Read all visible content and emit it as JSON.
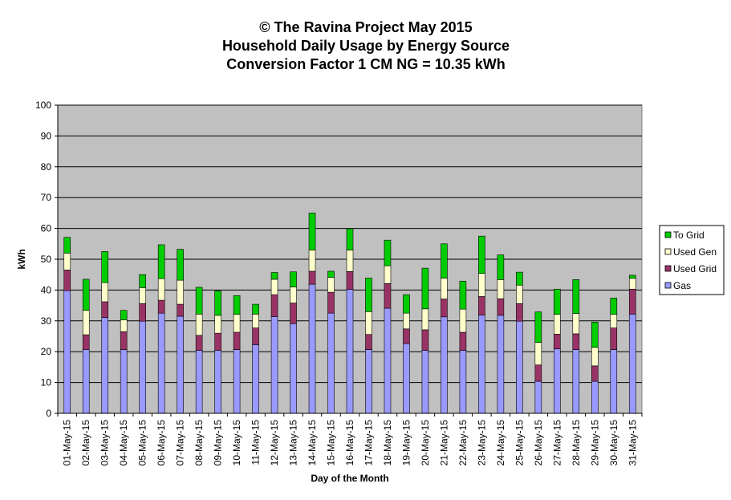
{
  "chart_data": {
    "type": "bar",
    "stacked": true,
    "title": [
      "© The Ravina Project May 2015",
      "Household Daily Usage by Energy Source",
      "Conversion Factor 1 CM NG = 10.35 kWh"
    ],
    "xlabel": "Day of the Month",
    "ylabel": "kWh",
    "ylim": [
      0,
      100
    ],
    "yticks": [
      0,
      10,
      20,
      30,
      40,
      50,
      60,
      70,
      80,
      90,
      100
    ],
    "grid": true,
    "legend_position": "right",
    "plot_background": "#c0c0c0",
    "categories": [
      "01-May-15",
      "02-May-15",
      "03-May-15",
      "04-May-15",
      "05-May-15",
      "06-May-15",
      "07-May-15",
      "08-May-15",
      "09-May-15",
      "10-May-15",
      "11-May-15",
      "12-May-15",
      "13-May-15",
      "14-May-15",
      "15-May-15",
      "16-May-15",
      "17-May-15",
      "18-May-15",
      "19-May-15",
      "20-May-15",
      "21-May-15",
      "22-May-15",
      "23-May-15",
      "24-May-15",
      "25-May-15",
      "26-May-15",
      "27-May-15",
      "28-May-15",
      "29-May-15",
      "30-May-15",
      "31-May-15"
    ],
    "series": [
      {
        "name": "Gas",
        "color": "#9999ff",
        "values": [
          39.8,
          20.7,
          31.1,
          20.7,
          29.9,
          32.5,
          31.5,
          20.4,
          20.4,
          20.7,
          22.3,
          31.4,
          29.1,
          41.9,
          32.5,
          40.2,
          20.7,
          34.1,
          22.6,
          20.4,
          31.3,
          20.4,
          31.9,
          31.8,
          29.9,
          10.4,
          20.9,
          20.7,
          10.4,
          20.7,
          32.2
        ]
      },
      {
        "name": "Used Grid",
        "color": "#993366",
        "values": [
          6.7,
          4.8,
          5.1,
          5.8,
          5.7,
          4.2,
          3.9,
          4.9,
          5.6,
          5.6,
          5.4,
          7.1,
          6.7,
          4.2,
          6.8,
          5.8,
          4.9,
          8.0,
          4.8,
          6.7,
          5.8,
          5.9,
          6.0,
          5.4,
          5.7,
          5.3,
          4.8,
          5.1,
          5.0,
          7.0,
          8.1
        ]
      },
      {
        "name": "Used Gen",
        "color": "#ffffcc",
        "values": [
          5.5,
          7.9,
          6.2,
          3.8,
          5.2,
          7.0,
          7.8,
          6.9,
          5.8,
          5.8,
          4.5,
          5.0,
          5.2,
          6.9,
          4.8,
          7.0,
          7.4,
          5.8,
          5.1,
          6.8,
          6.8,
          7.5,
          7.5,
          6.2,
          6.0,
          7.3,
          6.4,
          6.6,
          6.0,
          4.4,
          3.5
        ]
      },
      {
        "name": "To Grid",
        "color": "#00cc00",
        "values": [
          5.1,
          10.1,
          10.1,
          3.1,
          4.2,
          11.0,
          10.0,
          8.7,
          7.9,
          6.1,
          3.2,
          2.2,
          4.9,
          12.0,
          2.0,
          6.9,
          10.9,
          8.3,
          6.0,
          13.2,
          11.1,
          9.1,
          12.1,
          8.0,
          4.2,
          9.9,
          8.2,
          11.0,
          8.2,
          5.3,
          1.0
        ]
      }
    ]
  }
}
